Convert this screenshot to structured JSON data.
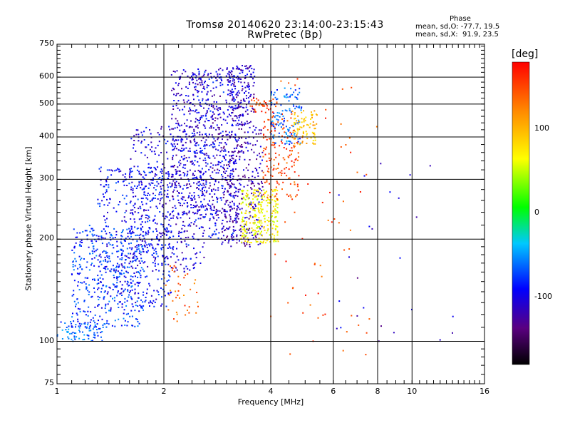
{
  "chart_data": {
    "type": "scatter",
    "title": "Tromsø 20140620 23:14:00-23:15:43",
    "subtitle": "RwPretec (Bp)",
    "xlabel": "Frequency [MHz]",
    "ylabel": "Stationary phase Virtual Height [km]",
    "x_scale": "log",
    "y_scale": "log",
    "xlim": [
      1,
      16
    ],
    "ylim": [
      75,
      750
    ],
    "xticks": [
      "1",
      "2",
      "4",
      "6",
      "8",
      "10",
      "16"
    ],
    "yticks": [
      "75",
      "100",
      "200",
      "300",
      "400",
      "500",
      "600",
      "750"
    ],
    "x_grid": [
      2,
      4,
      6,
      8,
      10
    ],
    "y_grid": [
      100,
      200,
      300,
      400,
      500,
      600
    ],
    "grid": true,
    "colorbar": {
      "label": "[deg]",
      "range": [
        -180,
        180
      ],
      "ticks": [
        "100",
        "0",
        "-100"
      ],
      "colors": [
        "#000000",
        "#5a0080",
        "#0000ff",
        "#00c8ff",
        "#00ff00",
        "#ffff00",
        "#ff8800",
        "#ff0000"
      ]
    },
    "stats": {
      "heading": "Phase",
      "o_line": "mean, sd,O: -77.7, 19.5",
      "x_line": "mean, sd,X:  91.9, 23.5"
    },
    "point_color_scale_note": "points colored by phase",
    "clusters": [
      {
        "f0": 1.0,
        "f1": 1.35,
        "h0": 100,
        "h1": 115,
        "phase": -65,
        "n": 80
      },
      {
        "f0": 1.1,
        "f1": 1.75,
        "h0": 110,
        "h1": 220,
        "phase": -75,
        "n": 400
      },
      {
        "f0": 1.3,
        "f1": 2.1,
        "h0": 125,
        "h1": 330,
        "phase": -90,
        "n": 450
      },
      {
        "f0": 1.6,
        "f1": 2.6,
        "h0": 160,
        "h1": 430,
        "phase": -100,
        "n": 420
      },
      {
        "f0": 2.1,
        "f1": 2.9,
        "h0": 230,
        "h1": 640,
        "phase": -110,
        "n": 420
      },
      {
        "f0": 2.4,
        "f1": 3.2,
        "h0": 200,
        "h1": 640,
        "phase": -95,
        "n": 300
      },
      {
        "f0": 2.9,
        "f1": 3.8,
        "h0": 190,
        "h1": 430,
        "phase": -115,
        "n": 350
      },
      {
        "f0": 3.0,
        "f1": 3.6,
        "h0": 430,
        "h1": 650,
        "phase": -110,
        "n": 200
      },
      {
        "f0": 3.3,
        "f1": 4.2,
        "h0": 195,
        "h1": 280,
        "phase": 70,
        "n": 260
      },
      {
        "f0": 3.8,
        "f1": 4.8,
        "h0": 260,
        "h1": 470,
        "phase": 150,
        "n": 150
      },
      {
        "f0": 4.0,
        "f1": 4.9,
        "h0": 380,
        "h1": 560,
        "phase": -65,
        "n": 120
      },
      {
        "f0": 4.6,
        "f1": 5.4,
        "h0": 380,
        "h1": 480,
        "phase": 95,
        "n": 80
      },
      {
        "f0": 3.5,
        "f1": 4.2,
        "h0": 470,
        "h1": 520,
        "phase": 150,
        "n": 40
      },
      {
        "f0": 2.0,
        "f1": 2.5,
        "h0": 110,
        "h1": 170,
        "phase": 140,
        "n": 40
      },
      {
        "f0": 4.0,
        "f1": 8.0,
        "h0": 90,
        "h1": 600,
        "phase": 150,
        "n": 70
      },
      {
        "f0": 6.0,
        "f1": 14.0,
        "h0": 100,
        "h1": 350,
        "phase": -110,
        "n": 25
      }
    ]
  }
}
